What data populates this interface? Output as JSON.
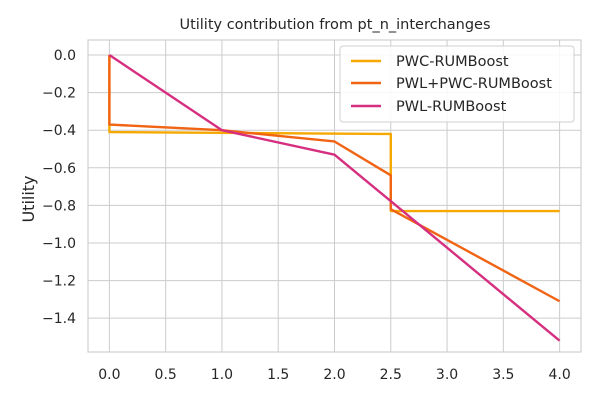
{
  "chart_data": {
    "type": "line",
    "title": "Utility contribution from pt_n_interchanges",
    "xlabel": "",
    "ylabel": "Utility",
    "xlim": [
      -0.19,
      4.19
    ],
    "ylim": [
      -1.58,
      0.08
    ],
    "xticks": [
      0.0,
      0.5,
      1.0,
      1.5,
      2.0,
      2.5,
      3.0,
      3.5,
      4.0
    ],
    "xtick_labels": [
      "0.0",
      "0.5",
      "1.0",
      "1.5",
      "2.0",
      "2.5",
      "3.0",
      "3.5",
      "4.0"
    ],
    "yticks": [
      0.0,
      -0.2,
      -0.4,
      -0.6,
      -0.8,
      -1.0,
      -1.2,
      -1.4
    ],
    "ytick_labels": [
      "0.0",
      "−0.2",
      "−0.4",
      "−0.6",
      "−0.8",
      "−1.0",
      "−1.2",
      "−1.4"
    ],
    "grid": true,
    "legend_position": "top-right",
    "series": [
      {
        "name": "PWC-RUMBoost",
        "color": "#F5A800",
        "x": [
          0.0,
          0.0,
          2.5,
          2.5,
          4.0
        ],
        "y": [
          0.0,
          -0.41,
          -0.42,
          -0.83,
          -0.83
        ]
      },
      {
        "name": "PWL+PWC-RUMBoost",
        "color": "#F06414",
        "x": [
          0.0,
          0.0,
          1.0,
          2.0,
          2.5,
          2.5,
          4.0
        ],
        "y": [
          0.0,
          -0.37,
          -0.4,
          -0.46,
          -0.64,
          -0.82,
          -1.31
        ]
      },
      {
        "name": "PWL-RUMBoost",
        "color": "#D62F7F",
        "x": [
          0.0,
          1.0,
          2.0,
          4.0
        ],
        "y": [
          0.0,
          -0.4,
          -0.53,
          -1.52
        ]
      }
    ]
  }
}
